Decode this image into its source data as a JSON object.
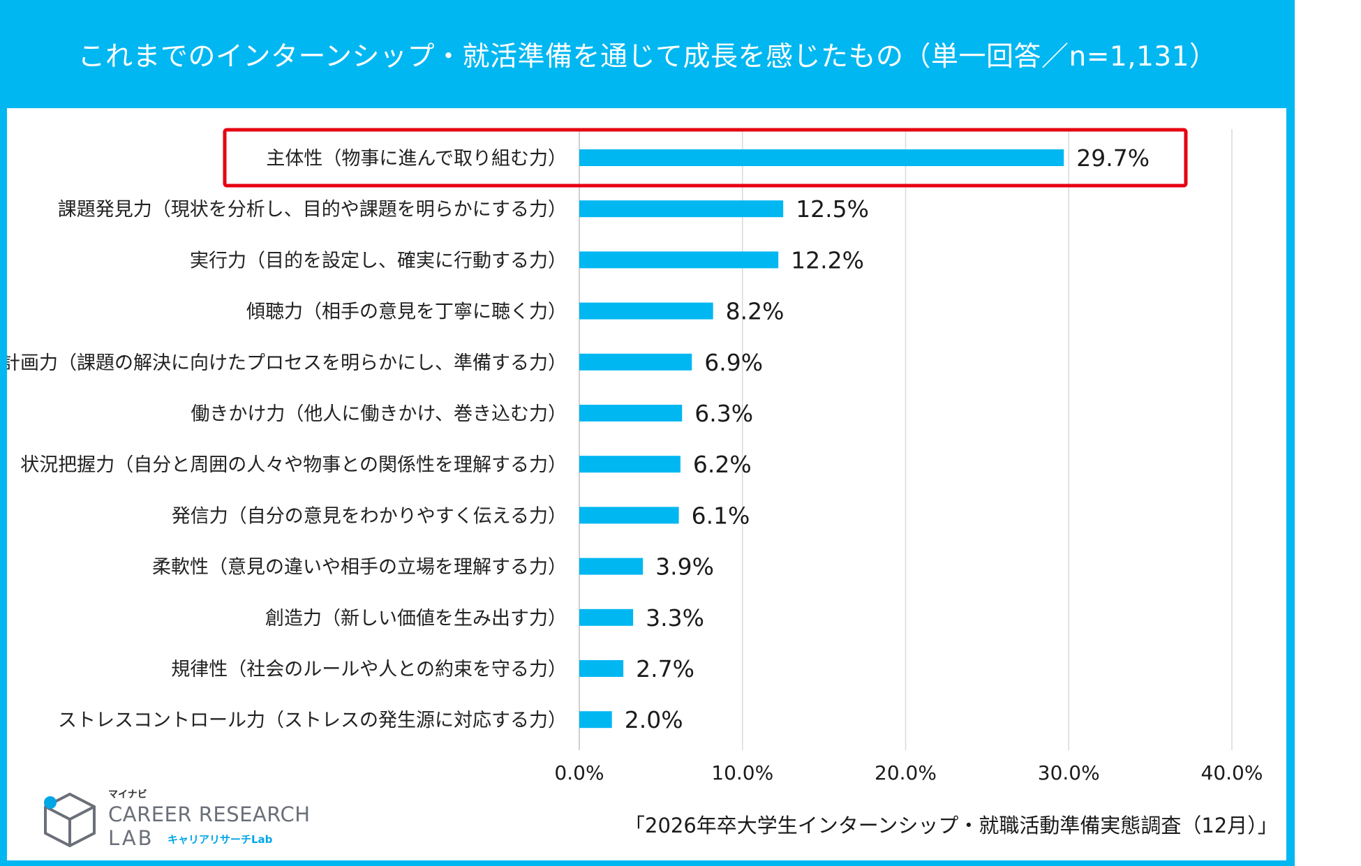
{
  "header": {
    "title": "これまでのインターンシップ・就活準備を通じて成長を感じたもの（単一回答／n=1,131）"
  },
  "chart_data": {
    "type": "bar",
    "orientation": "horizontal",
    "title": "これまでのインターンシップ・就活準備を通じて成長を感じたもの（単一回答／n=1,131）",
    "categories": [
      "主体性（物事に進んで取り組む力）",
      "課題発見力（現状を分析し、目的や課題を明らかにする力）",
      "実行力（目的を設定し、確実に行動する力）",
      "傾聴力（相手の意見を丁寧に聴く力）",
      "計画力（課題の解決に向けたプロセスを明らかにし、準備する力）",
      "働きかけ力（他人に働きかけ、巻き込む力）",
      "状況把握力（自分と周囲の人々や物事との関係性を理解する力）",
      "発信力（自分の意見をわかりやすく伝える力）",
      "柔軟性（意見の違いや相手の立場を理解する力）",
      "創造力（新しい価値を生み出す力）",
      "規律性（社会のルールや人との約束を守る力）",
      "ストレスコントロール力（ストレスの発生源に対応する力）"
    ],
    "values": [
      29.7,
      12.5,
      12.2,
      8.2,
      6.9,
      6.3,
      6.2,
      6.1,
      3.9,
      3.3,
      2.7,
      2.0
    ],
    "value_labels": [
      "29.7%",
      "12.5%",
      "12.2%",
      "8.2%",
      "6.9%",
      "6.3%",
      "6.2%",
      "6.1%",
      "3.9%",
      "3.3%",
      "2.7%",
      "2.0%"
    ],
    "xlim": [
      0,
      40
    ],
    "xticks": [
      0,
      10,
      20,
      30,
      40
    ],
    "xtick_labels": [
      "0.0%",
      "10.0%",
      "20.0%",
      "30.0%",
      "40.0%"
    ],
    "grid": true,
    "highlight_index": 0,
    "bar_color": "#00b7f1",
    "highlight_color": "#e60012"
  },
  "footer": {
    "source": "「2026年卒大学生インターンシップ・就職活動準備実態調査（12月）」"
  },
  "logo": {
    "top_text": "マイナビ",
    "main_text": "CAREER RESEARCH",
    "lab_text": "LAB",
    "sub_text": "キャリアリサーチLab"
  },
  "colors": {
    "frame": "#00b7f1",
    "bar": "#00b7f1",
    "highlight": "#e60012",
    "grid": "#d9d9d9"
  }
}
